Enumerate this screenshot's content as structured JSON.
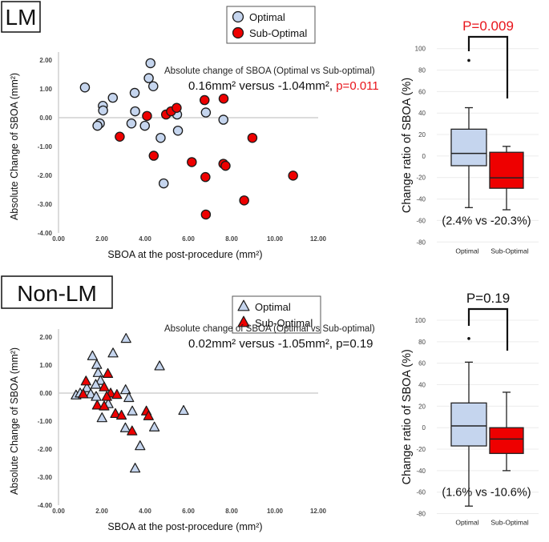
{
  "colors": {
    "optimal": "#c5d5ee",
    "sub_optimal": "#ee0000",
    "significant": "#e8141b",
    "text": "#111111"
  },
  "chart_data": [
    {
      "type": "scatter",
      "panel_label": "LM",
      "xlabel": "SBOA at the post-procedure (mm²)",
      "ylabel": "Absolute Change of SBOA (mm²)",
      "xlim": [
        0,
        12
      ],
      "ylim": [
        -4,
        2
      ],
      "xticks": [
        "0.00",
        "2.00",
        "4.00",
        "6.00",
        "8.00",
        "10.00",
        "12.00"
      ],
      "yticks": [
        "2.00",
        "1.00",
        "0.00",
        "-1.00",
        "-2.00",
        "-3.00",
        "-4.00"
      ],
      "marker": "circle",
      "legend": [
        "Optimal",
        "Sub-Optimal"
      ],
      "annotation_title": "Absolute change of SBOA (Optimal vs Sub-optimal)",
      "annotation_values": "0.16mm² versus -1.04mm², ",
      "annotation_p": "p=0.011",
      "annotation_p_significant": true,
      "series": [
        {
          "name": "Optimal",
          "points": [
            [
              1.22,
              1.05
            ],
            [
              4.25,
              1.89
            ],
            [
              4.17,
              1.37
            ],
            [
              4.38,
              1.09
            ],
            [
              2.51,
              0.69
            ],
            [
              3.52,
              0.86
            ],
            [
              2.05,
              0.41
            ],
            [
              2.06,
              0.25
            ],
            [
              3.54,
              0.22
            ],
            [
              5.48,
              0.11
            ],
            [
              6.81,
              0.18
            ],
            [
              7.62,
              -0.07
            ],
            [
              1.91,
              -0.2
            ],
            [
              1.8,
              -0.28
            ],
            [
              3.37,
              -0.2
            ],
            [
              3.99,
              -0.28
            ],
            [
              5.52,
              -0.45
            ],
            [
              4.72,
              -0.7
            ],
            [
              4.86,
              -2.28
            ]
          ]
        },
        {
          "name": "Sub-Optimal",
          "points": [
            [
              6.75,
              0.61
            ],
            [
              7.63,
              0.66
            ],
            [
              4.09,
              0.06
            ],
            [
              4.97,
              0.11
            ],
            [
              5.2,
              0.22
            ],
            [
              5.46,
              0.34
            ],
            [
              2.83,
              -0.66
            ],
            [
              8.96,
              -0.7
            ],
            [
              4.4,
              -1.32
            ],
            [
              6.16,
              -1.54
            ],
            [
              7.62,
              -1.6
            ],
            [
              7.72,
              -1.67
            ],
            [
              6.79,
              -2.06
            ],
            [
              10.84,
              -2.01
            ],
            [
              8.58,
              -2.87
            ],
            [
              6.81,
              -3.36
            ]
          ]
        }
      ]
    },
    {
      "type": "box",
      "panel_label": "LM",
      "ylabel": "Change ratio of SBOA (%)",
      "ylim": [
        -80,
        100
      ],
      "yticks": [
        "100",
        "80",
        "60",
        "40",
        "20",
        "0",
        "-20",
        "-40",
        "-60",
        "-80"
      ],
      "categories": [
        "Optimal",
        "Sub-Optimal"
      ],
      "p_value": "P=0.009",
      "p_significant": true,
      "means_text": "(2.4% vs -20.3%)",
      "boxes": [
        {
          "name": "Optimal",
          "min": -48,
          "q1": -9,
          "median": 2.4,
          "q3": 25,
          "max": 45,
          "outliers": [
            89
          ]
        },
        {
          "name": "Sub-Optimal",
          "min": -50,
          "q1": -30,
          "median": -20.3,
          "q3": 3.5,
          "max": 9,
          "outliers": []
        }
      ]
    },
    {
      "type": "scatter",
      "panel_label": "Non-LM",
      "xlabel": "SBOA at the post-procedure (mm²)",
      "ylabel": "Absolute Change of SBOA (mm²)",
      "xlim": [
        0,
        12
      ],
      "ylim": [
        -4,
        2
      ],
      "xticks": [
        "0.00",
        "2.00",
        "4.00",
        "6.00",
        "8.00",
        "10.00",
        "12.00"
      ],
      "yticks": [
        "2.00",
        "1.00",
        "0.00",
        "-1.00",
        "-2.00",
        "-3.00",
        "-4.00"
      ],
      "marker": "triangle",
      "legend": [
        "Optimal",
        "Sub-Optimal"
      ],
      "annotation_title": "Absolute change of SBOA (Optimal vs Sub-optimal)",
      "annotation_values": "0.02mm² versus -1.05mm², ",
      "annotation_p": "p=0.19",
      "annotation_p_significant": false,
      "series": [
        {
          "name": "Optimal",
          "points": [
            [
              3.12,
              1.93
            ],
            [
              1.57,
              1.31
            ],
            [
              2.52,
              1.41
            ],
            [
              4.67,
              0.95
            ],
            [
              1.77,
              1.0
            ],
            [
              1.83,
              0.71
            ],
            [
              1.94,
              0.43
            ],
            [
              1.72,
              0.29
            ],
            [
              1.31,
              0.17
            ],
            [
              0.81,
              -0.09
            ],
            [
              1.0,
              -0.02
            ],
            [
              1.49,
              -0.05
            ],
            [
              1.74,
              -0.14
            ],
            [
              3.1,
              0.1
            ],
            [
              3.25,
              -0.18
            ],
            [
              2.3,
              -0.4
            ],
            [
              3.41,
              -0.66
            ],
            [
              5.78,
              -0.64
            ],
            [
              2.01,
              -0.9
            ],
            [
              3.09,
              -1.26
            ],
            [
              4.43,
              -1.23
            ],
            [
              3.77,
              -1.9
            ],
            [
              3.54,
              -2.7
            ]
          ]
        },
        {
          "name": "Sub-Optimal",
          "points": [
            [
              1.27,
              0.41
            ],
            [
              2.28,
              0.68
            ],
            [
              2.11,
              0.2
            ],
            [
              1.14,
              -0.05
            ],
            [
              2.41,
              -0.02
            ],
            [
              2.7,
              -0.07
            ],
            [
              2.23,
              -0.14
            ],
            [
              1.79,
              -0.45
            ],
            [
              2.11,
              -0.48
            ],
            [
              2.63,
              -0.75
            ],
            [
              2.91,
              -0.81
            ],
            [
              4.06,
              -0.66
            ],
            [
              4.16,
              -0.83
            ],
            [
              3.4,
              -1.37
            ]
          ]
        }
      ]
    },
    {
      "type": "box",
      "panel_label": "Non-LM",
      "ylabel": "Change ratio of SBOA (%)",
      "ylim": [
        -80,
        100
      ],
      "yticks": [
        "100",
        "80",
        "60",
        "40",
        "20",
        "0",
        "-20",
        "-40",
        "-60",
        "-80"
      ],
      "categories": [
        "Optimal",
        "Sub-Optimal"
      ],
      "p_value": "P=0.19",
      "p_significant": false,
      "means_text": "(1.6% vs -10.6%)",
      "boxes": [
        {
          "name": "Optimal",
          "min": -73,
          "q1": -17,
          "median": 1.6,
          "q3": 23,
          "max": 61,
          "outliers": [
            83
          ]
        },
        {
          "name": "Sub-Optimal",
          "min": -40,
          "q1": -24,
          "median": -10.6,
          "q3": 0,
          "max": 33,
          "outliers": []
        }
      ]
    }
  ]
}
